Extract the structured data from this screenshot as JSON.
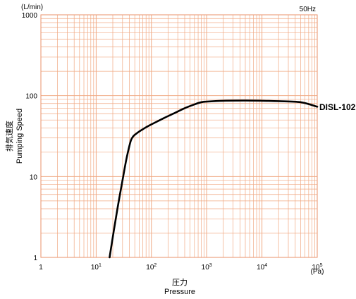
{
  "chart_data": {
    "type": "line",
    "x_scale": "log",
    "y_scale": "log",
    "xlim": [
      1,
      100000
    ],
    "ylim": [
      1,
      1000
    ],
    "x_ticks": [
      {
        "base": "1",
        "exp": ""
      },
      {
        "base": "10",
        "exp": "1"
      },
      {
        "base": "10",
        "exp": "2"
      },
      {
        "base": "10",
        "exp": "3"
      },
      {
        "base": "10",
        "exp": "4"
      },
      {
        "base": "10",
        "exp": "5"
      }
    ],
    "y_ticks": [
      "1",
      "10",
      "100",
      "1000"
    ],
    "y_unit": "(L/min)",
    "x_unit": "(Pa)",
    "ylabel": [
      "排気速度",
      "Pumping Speed"
    ],
    "xlabel": [
      "圧力",
      "Pressure"
    ],
    "top_right_note": "50Hz",
    "grid": true,
    "grid_color": "#f0a882",
    "line_color": "#000000",
    "series": [
      {
        "name": "DISL-102",
        "x": [
          17.5,
          21,
          25,
          30,
          35,
          40,
          43,
          47,
          52,
          60,
          70,
          90,
          120,
          170,
          250,
          400,
          600,
          800,
          1000,
          2000,
          5000,
          10000,
          20000,
          50000,
          100000
        ],
        "y": [
          1,
          2.2,
          4.5,
          9,
          16,
          24,
          28.5,
          31.5,
          33.5,
          36,
          38.5,
          42.5,
          47,
          53,
          60,
          70,
          78,
          83,
          84.5,
          86.5,
          87,
          86.5,
          85.5,
          83,
          73
        ]
      }
    ]
  }
}
